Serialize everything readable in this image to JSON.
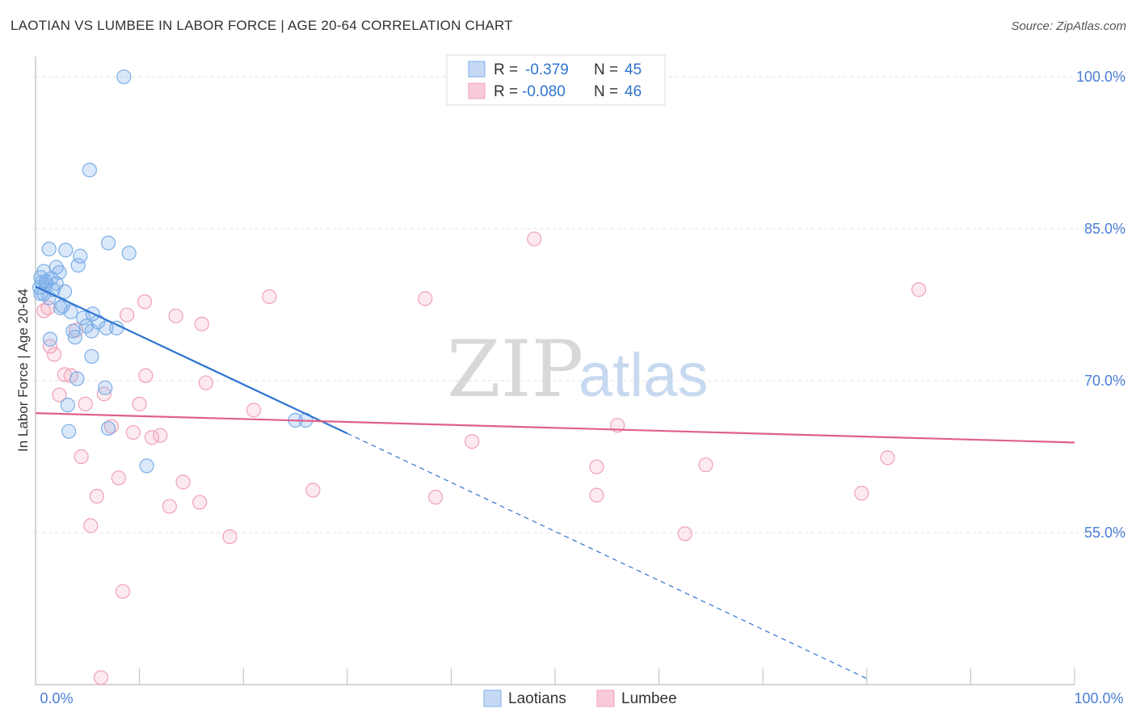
{
  "title": "LAOTIAN VS LUMBEE IN LABOR FORCE | AGE 20-64 CORRELATION CHART",
  "source": "Source: ZipAtlas.com",
  "watermark": {
    "part1": "ZIP",
    "part2": "atlas"
  },
  "chart_data": {
    "type": "scatter",
    "title": "LAOTIAN VS LUMBEE IN LABOR FORCE | AGE 20-64 CORRELATION CHART",
    "ylabel": "In Labor Force | Age 20-64",
    "xlabel": "",
    "xlim": [
      0,
      100
    ],
    "ylim": [
      40,
      102
    ],
    "x_tick_labels": [
      "0.0%",
      "100.0%"
    ],
    "y_ticks": [
      55,
      70,
      85,
      100
    ],
    "y_tick_labels": [
      "55.0%",
      "70.0%",
      "85.0%",
      "100.0%"
    ],
    "grid": true,
    "legend_position": "top-center",
    "stats": [
      {
        "r_label": "R =",
        "r_value": "-0.379",
        "n_label": "N =",
        "n_value": "45"
      },
      {
        "r_label": "R =",
        "r_value": "-0.080",
        "n_label": "N =",
        "n_value": "46"
      }
    ],
    "series": [
      {
        "name": "Laotians",
        "color": "#7baee8",
        "line_color": "#2f74d0",
        "trend": {
          "x0": 0,
          "y0": 79.3,
          "x1": 30,
          "y1": 64.8,
          "dashed_to_x": 80,
          "dashed_to_y": 40.6
        },
        "points": [
          {
            "x": 8.5,
            "y": 100.0
          },
          {
            "x": 5.2,
            "y": 90.8
          },
          {
            "x": 1.3,
            "y": 83.0
          },
          {
            "x": 2.9,
            "y": 82.9
          },
          {
            "x": 7.0,
            "y": 83.6
          },
          {
            "x": 9.0,
            "y": 82.6
          },
          {
            "x": 4.3,
            "y": 82.3
          },
          {
            "x": 4.1,
            "y": 81.4
          },
          {
            "x": 0.8,
            "y": 80.8
          },
          {
            "x": 2.0,
            "y": 81.2
          },
          {
            "x": 2.3,
            "y": 80.7
          },
          {
            "x": 0.5,
            "y": 80.2
          },
          {
            "x": 1.5,
            "y": 80.1
          },
          {
            "x": 0.6,
            "y": 79.7
          },
          {
            "x": 1.0,
            "y": 79.5
          },
          {
            "x": 0.4,
            "y": 79.2
          },
          {
            "x": 2.0,
            "y": 79.6
          },
          {
            "x": 1.7,
            "y": 79.0
          },
          {
            "x": 0.8,
            "y": 78.6
          },
          {
            "x": 2.8,
            "y": 78.8
          },
          {
            "x": 1.3,
            "y": 78.2
          },
          {
            "x": 0.5,
            "y": 78.6
          },
          {
            "x": 2.6,
            "y": 77.4
          },
          {
            "x": 2.4,
            "y": 77.2
          },
          {
            "x": 3.4,
            "y": 76.8
          },
          {
            "x": 5.5,
            "y": 76.6
          },
          {
            "x": 4.6,
            "y": 76.2
          },
          {
            "x": 6.0,
            "y": 75.8
          },
          {
            "x": 6.8,
            "y": 75.2
          },
          {
            "x": 4.9,
            "y": 75.4
          },
          {
            "x": 5.4,
            "y": 74.9
          },
          {
            "x": 7.8,
            "y": 75.2
          },
          {
            "x": 3.6,
            "y": 74.9
          },
          {
            "x": 3.8,
            "y": 74.3
          },
          {
            "x": 1.4,
            "y": 74.1
          },
          {
            "x": 5.4,
            "y": 72.4
          },
          {
            "x": 4.0,
            "y": 70.2
          },
          {
            "x": 6.7,
            "y": 69.3
          },
          {
            "x": 3.1,
            "y": 67.6
          },
          {
            "x": 25.0,
            "y": 66.1
          },
          {
            "x": 26.0,
            "y": 66.1
          },
          {
            "x": 7.0,
            "y": 65.3
          },
          {
            "x": 3.2,
            "y": 65.0
          },
          {
            "x": 10.7,
            "y": 61.6
          },
          {
            "x": 1.0,
            "y": 79.8
          }
        ]
      },
      {
        "name": "Lumbee",
        "color": "#f0a0b8",
        "line_color": "#e0608a",
        "trend": {
          "x0": 0,
          "y0": 66.8,
          "x1": 100,
          "y1": 63.9
        },
        "points": [
          {
            "x": 48.0,
            "y": 84.0
          },
          {
            "x": 85.0,
            "y": 79.0
          },
          {
            "x": 22.5,
            "y": 78.3
          },
          {
            "x": 37.5,
            "y": 78.1
          },
          {
            "x": 10.5,
            "y": 77.8
          },
          {
            "x": 0.8,
            "y": 76.9
          },
          {
            "x": 8.8,
            "y": 76.5
          },
          {
            "x": 13.5,
            "y": 76.4
          },
          {
            "x": 16.0,
            "y": 75.6
          },
          {
            "x": 3.9,
            "y": 75.0
          },
          {
            "x": 1.4,
            "y": 73.4
          },
          {
            "x": 1.8,
            "y": 72.6
          },
          {
            "x": 2.8,
            "y": 70.6
          },
          {
            "x": 3.4,
            "y": 70.5
          },
          {
            "x": 10.6,
            "y": 70.5
          },
          {
            "x": 16.4,
            "y": 69.8
          },
          {
            "x": 2.3,
            "y": 68.6
          },
          {
            "x": 6.6,
            "y": 68.7
          },
          {
            "x": 4.8,
            "y": 67.7
          },
          {
            "x": 10.0,
            "y": 67.7
          },
          {
            "x": 21.0,
            "y": 67.1
          },
          {
            "x": 7.3,
            "y": 65.5
          },
          {
            "x": 56.0,
            "y": 65.6
          },
          {
            "x": 9.4,
            "y": 64.9
          },
          {
            "x": 11.2,
            "y": 64.4
          },
          {
            "x": 12.0,
            "y": 64.6
          },
          {
            "x": 42.0,
            "y": 64.0
          },
          {
            "x": 4.4,
            "y": 62.5
          },
          {
            "x": 82.0,
            "y": 62.4
          },
          {
            "x": 54.0,
            "y": 61.5
          },
          {
            "x": 64.5,
            "y": 61.7
          },
          {
            "x": 8.0,
            "y": 60.4
          },
          {
            "x": 14.2,
            "y": 60.0
          },
          {
            "x": 26.7,
            "y": 59.2
          },
          {
            "x": 5.9,
            "y": 58.6
          },
          {
            "x": 38.5,
            "y": 58.5
          },
          {
            "x": 54.0,
            "y": 58.7
          },
          {
            "x": 79.5,
            "y": 58.9
          },
          {
            "x": 12.9,
            "y": 57.6
          },
          {
            "x": 15.8,
            "y": 58.0
          },
          {
            "x": 5.3,
            "y": 55.7
          },
          {
            "x": 18.7,
            "y": 54.6
          },
          {
            "x": 62.5,
            "y": 54.9
          },
          {
            "x": 8.4,
            "y": 49.2
          },
          {
            "x": 6.3,
            "y": 40.7
          },
          {
            "x": 1.2,
            "y": 77.2
          }
        ]
      }
    ]
  }
}
